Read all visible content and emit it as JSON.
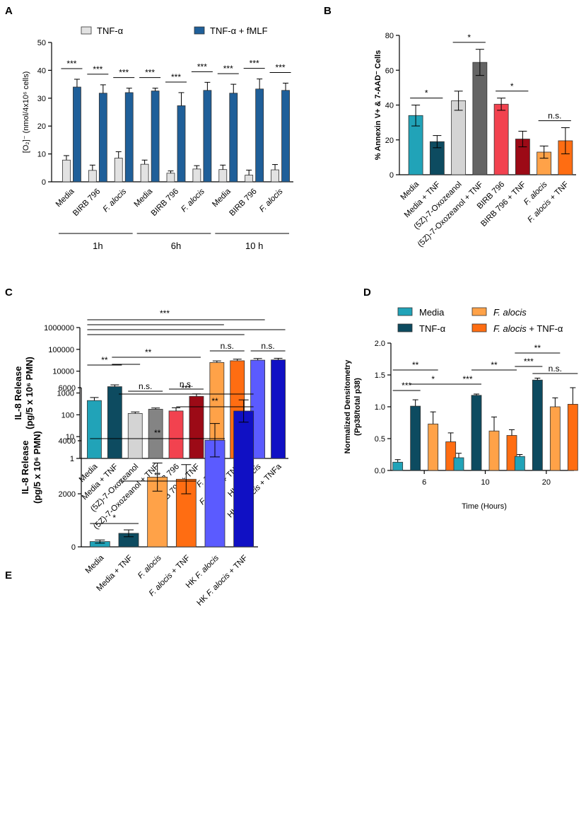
{
  "chart_data": [
    {
      "id": "A",
      "type": "bar",
      "panel_label": "A",
      "ylabel": "[O₂]⁻ (nmol/4x10⁶ cells)",
      "ylim": [
        0,
        50
      ],
      "yticks": [
        0,
        10,
        20,
        30,
        40,
        50
      ],
      "legend": [
        "TNF-α",
        "TNF-α + fMLF"
      ],
      "colors": [
        "#e2e2e2",
        "#1f5f99"
      ],
      "categories": [
        "Media",
        "BIRB 796",
        "F. alocis",
        "Media",
        "BIRB 796",
        "F. alocis",
        "Media",
        "BIRB 796",
        "F. alocis"
      ],
      "italic_categories": [
        "F. alocis"
      ],
      "groups": [
        {
          "label": "1h",
          "start": 0,
          "end": 2
        },
        {
          "label": "6h",
          "start": 3,
          "end": 5
        },
        {
          "label": "10 h",
          "start": 6,
          "end": 8
        }
      ],
      "series": [
        {
          "name": "TNF-α",
          "values": [
            7.8,
            4.1,
            8.5,
            6.3,
            3.1,
            4.6,
            4.4,
            2.4,
            4.3
          ],
          "errors": [
            1.6,
            1.9,
            2.3,
            1.5,
            0.8,
            1.2,
            1.6,
            1.8,
            1.9
          ]
        },
        {
          "name": "TNF-α + fMLF",
          "values": [
            34.0,
            31.8,
            32.0,
            32.6,
            27.3,
            32.8,
            31.8,
            33.3,
            32.8
          ],
          "errors": [
            2.8,
            3.0,
            1.6,
            1.0,
            4.7,
            2.9,
            3.2,
            3.6,
            2.6
          ]
        }
      ],
      "significance": [
        {
          "cat": 0,
          "label": "***"
        },
        {
          "cat": 1,
          "label": "***"
        },
        {
          "cat": 2,
          "label": "***"
        },
        {
          "cat": 3,
          "label": "***"
        },
        {
          "cat": 4,
          "label": "***"
        },
        {
          "cat": 5,
          "label": "***"
        },
        {
          "cat": 6,
          "label": "***"
        },
        {
          "cat": 7,
          "label": "***"
        },
        {
          "cat": 8,
          "label": "***"
        }
      ]
    },
    {
      "id": "B",
      "type": "bar",
      "panel_label": "B",
      "ylabel": "% Annexin V+ & 7-AAD⁻ Cells",
      "ylim": [
        0,
        80
      ],
      "yticks": [
        0,
        20,
        40,
        60,
        80
      ],
      "categories": [
        "Media",
        "Media + TNF",
        "(5Z)-7-Oxozeanol",
        "(5Z)-7-Oxozeanol + TNF",
        "BIRB 796",
        "BIRB 796 + TNF",
        "F. alocis",
        "F. alocis + TNF"
      ],
      "italic_categories": [
        "F. alocis",
        "F. alocis + TNF"
      ],
      "values": [
        34.0,
        19.0,
        42.5,
        64.5,
        40.5,
        20.5,
        13.0,
        19.5
      ],
      "errors": [
        6.0,
        3.5,
        5.5,
        7.5,
        3.5,
        4.5,
        3.5,
        7.5
      ],
      "colors": [
        "#21a3b8",
        "#0d4b60",
        "#d4d4d4",
        "#646464",
        "#f2424f",
        "#9c0a16",
        "#ffa248",
        "#ff6d12"
      ],
      "significance": [
        {
          "from": 0,
          "to": 1,
          "label": "*"
        },
        {
          "from": 2,
          "to": 3,
          "label": "*"
        },
        {
          "from": 4,
          "to": 5,
          "label": "*"
        },
        {
          "from": 6,
          "to": 7,
          "label": "n.s."
        }
      ]
    },
    {
      "id": "C",
      "type": "bar",
      "panel_label": "C",
      "yscale": "log",
      "ylabel_line1": "IL-8 Release",
      "ylabel_line2": "(pg/5 x 10⁶ PMN)",
      "ylim": [
        1,
        1000000
      ],
      "yticks": [
        1,
        10,
        100,
        1000,
        10000,
        100000,
        1000000
      ],
      "ytick_labels": [
        "1",
        "10",
        "100",
        "1000",
        "10000",
        "100000",
        "1000000"
      ],
      "categories": [
        "Media",
        "Media + TNF",
        "(5Z)-7-Oxozeanol",
        "(5Z)-7-Oxozeanol + TNF",
        "BIRB 796",
        "BIRB 796 + TNF",
        "F. alocis",
        "F. alocis + TNF",
        "HK F. alocis",
        "HK F. alocis + TNFa"
      ],
      "italic_categories": [
        "F. alocis",
        "F. alocis + TNF",
        "HK F. alocis",
        "HK F. alocis + TNFa"
      ],
      "values": [
        450,
        1950,
        115,
        180,
        150,
        700,
        25000,
        30000,
        32000,
        33000
      ],
      "err_high": [
        620,
        2350,
        135,
        205,
        210,
        910,
        29500,
        35500,
        38000,
        39000
      ],
      "colors": [
        "#21a3b8",
        "#0d4b60",
        "#d4d4d4",
        "#848484",
        "#f2424f",
        "#9c0a16",
        "#ffa248",
        "#ff6d12",
        "#5b5bff",
        "#1010c4"
      ],
      "significance": [
        {
          "from": 0,
          "to": 1,
          "label": "**"
        },
        {
          "from": 1,
          "to": 3,
          "label": "n.s."
        },
        {
          "from": 1,
          "to": 5,
          "label": "**"
        },
        {
          "from": 2,
          "to": 3,
          "label": "n.s."
        },
        {
          "from": 4,
          "to": 5,
          "label": "n.s."
        },
        {
          "from": 6,
          "to": 7,
          "label": "n.s."
        },
        {
          "from": 8,
          "to": 9,
          "label": "n.s."
        },
        {
          "from": 0,
          "to": 9,
          "label": "***"
        }
      ]
    },
    {
      "id": "D",
      "type": "bar",
      "panel_label": "D",
      "ylabel_line1": "Normalized Densitometry",
      "ylabel_line2": "(Pp38/total p38)",
      "xlabel": "Time (Hours)",
      "ylim": [
        0,
        2.0
      ],
      "yticks": [
        0.0,
        0.5,
        1.0,
        1.5,
        2.0
      ],
      "ytick_labels": [
        "0.0",
        "0.5",
        "1.0",
        "1.5",
        "2.0"
      ],
      "categories": [
        "6",
        "10",
        "20"
      ],
      "legend": [
        "Media",
        "TNF-α",
        "F. alocis",
        "F. alocis + TNF-α"
      ],
      "series": [
        {
          "name": "Media",
          "color": "#21a3b8",
          "values": [
            0.13,
            0.2,
            0.22
          ],
          "errors": [
            0.04,
            0.07,
            0.03
          ]
        },
        {
          "name": "TNF-α",
          "color": "#0d4b60",
          "values": [
            1.01,
            1.18,
            1.42
          ],
          "errors": [
            0.1,
            0.02,
            0.03
          ]
        },
        {
          "name": "F. alocis",
          "color": "#ffa248",
          "values": [
            0.73,
            0.62,
            1.0
          ],
          "errors": [
            0.19,
            0.22,
            0.14
          ]
        },
        {
          "name": "F. alocis + TNF-α",
          "color": "#ff6d12",
          "values": [
            0.45,
            0.55,
            1.04
          ],
          "errors": [
            0.14,
            0.09,
            0.26
          ]
        }
      ],
      "significance": [
        {
          "group": 0,
          "from": 0,
          "to": 1,
          "label": "***"
        },
        {
          "group": 0,
          "from": 0,
          "to": 2,
          "label": "**"
        },
        {
          "group": 0,
          "from": 1,
          "to": 3,
          "label": "*"
        },
        {
          "group": 1,
          "from": 0,
          "to": 1,
          "label": "***"
        },
        {
          "group": 1,
          "from": 1,
          "to": 3,
          "label": "**"
        },
        {
          "group": 2,
          "from": 0,
          "to": 1,
          "label": "***"
        },
        {
          "group": 2,
          "from": 0,
          "to": 2,
          "label": "**"
        },
        {
          "group": 2,
          "from": 1,
          "to": 3,
          "label": "n.s."
        }
      ]
    },
    {
      "id": "E",
      "type": "bar",
      "panel_label": "E",
      "ylabel_line1": "IL-8 Release",
      "ylabel_line2": "(pg/5 x 10⁶ PMN)",
      "ylim": [
        0,
        6000
      ],
      "yticks": [
        0,
        2000,
        4000,
        6000
      ],
      "categories": [
        "Media",
        "Media + TNF",
        "F. alocis",
        "F. alocis + TNF",
        "HK F. alocis",
        "HK F. alocis + TNF"
      ],
      "italic_categories": [
        "F. alocis",
        "F. alocis + TNF",
        "HK F. alocis",
        "HK F. alocis + TNF"
      ],
      "values": [
        200,
        510,
        2630,
        2550,
        4020,
        5120
      ],
      "errors": [
        60,
        130,
        530,
        550,
        630,
        420
      ],
      "colors": [
        "#21a3b8",
        "#0d4b60",
        "#ffa248",
        "#ff6d12",
        "#5b5bff",
        "#1010c4"
      ],
      "significance": [
        {
          "from": 0,
          "to": 1,
          "label": "*"
        },
        {
          "from": 1,
          "to": 3,
          "label": "**"
        },
        {
          "from": 0,
          "to": 4,
          "label": "**"
        },
        {
          "from": 3,
          "to": 5,
          "label": "**"
        },
        {
          "from": 1,
          "to": 5,
          "label": "***"
        }
      ]
    }
  ]
}
